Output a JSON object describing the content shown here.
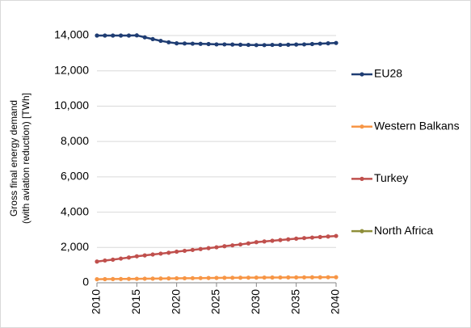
{
  "chart_data": {
    "type": "line",
    "ylabel": [
      "Gross final energy demand",
      "(with aviation reduction) [TWh]"
    ],
    "x": [
      2010,
      2011,
      2012,
      2013,
      2014,
      2015,
      2016,
      2017,
      2018,
      2019,
      2020,
      2021,
      2022,
      2023,
      2024,
      2025,
      2026,
      2027,
      2028,
      2029,
      2030,
      2031,
      2032,
      2033,
      2034,
      2035,
      2036,
      2037,
      2038,
      2039,
      2040
    ],
    "xlim": [
      2010,
      2040
    ],
    "xticks": [
      2010,
      2015,
      2020,
      2025,
      2030,
      2035,
      2040
    ],
    "ylim": [
      0,
      14000
    ],
    "yticks": [
      0,
      {
        "value": 2000,
        "label": "2,000"
      },
      {
        "value": 4000,
        "label": "4,000"
      },
      {
        "value": 6000,
        "label": "6,000"
      },
      {
        "value": 8000,
        "label": "8,000"
      },
      {
        "value": 10000,
        "label": "10,000"
      },
      {
        "value": 12000,
        "label": "12,000"
      },
      {
        "value": 14000,
        "label": "14,000"
      }
    ],
    "grid": true,
    "legend": "right",
    "series": [
      {
        "name": "EU28",
        "color": "#1f3d73",
        "values": [
          14000,
          14000,
          14000,
          14000,
          14000,
          14010,
          13900,
          13800,
          13700,
          13620,
          13560,
          13550,
          13540,
          13530,
          13520,
          13500,
          13500,
          13490,
          13480,
          13470,
          13460,
          13460,
          13470,
          13470,
          13480,
          13490,
          13500,
          13520,
          13540,
          13560,
          13580
        ]
      },
      {
        "name": "Western Balkans",
        "color": "#f79646",
        "values": [
          200,
          205,
          210,
          215,
          220,
          225,
          230,
          235,
          240,
          245,
          250,
          255,
          260,
          265,
          270,
          275,
          280,
          283,
          286,
          289,
          292,
          295,
          298,
          300,
          302,
          304,
          306,
          308,
          310,
          312,
          315
        ]
      },
      {
        "name": "Turkey",
        "color": "#c0504d",
        "values": [
          1200,
          1260,
          1310,
          1370,
          1430,
          1500,
          1550,
          1600,
          1650,
          1700,
          1760,
          1810,
          1860,
          1910,
          1960,
          2010,
          2070,
          2120,
          2170,
          2230,
          2300,
          2340,
          2380,
          2420,
          2460,
          2500,
          2530,
          2560,
          2590,
          2620,
          2650
        ]
      },
      {
        "name": "North Africa",
        "color": "#8f8f3a",
        "values": [
          null,
          null,
          null,
          null,
          null,
          null,
          null,
          null,
          null,
          null,
          null,
          null,
          null,
          null,
          null,
          null,
          null,
          null,
          null,
          null,
          null,
          null,
          null,
          null,
          null,
          null,
          null,
          null,
          null,
          null,
          null
        ]
      }
    ]
  }
}
